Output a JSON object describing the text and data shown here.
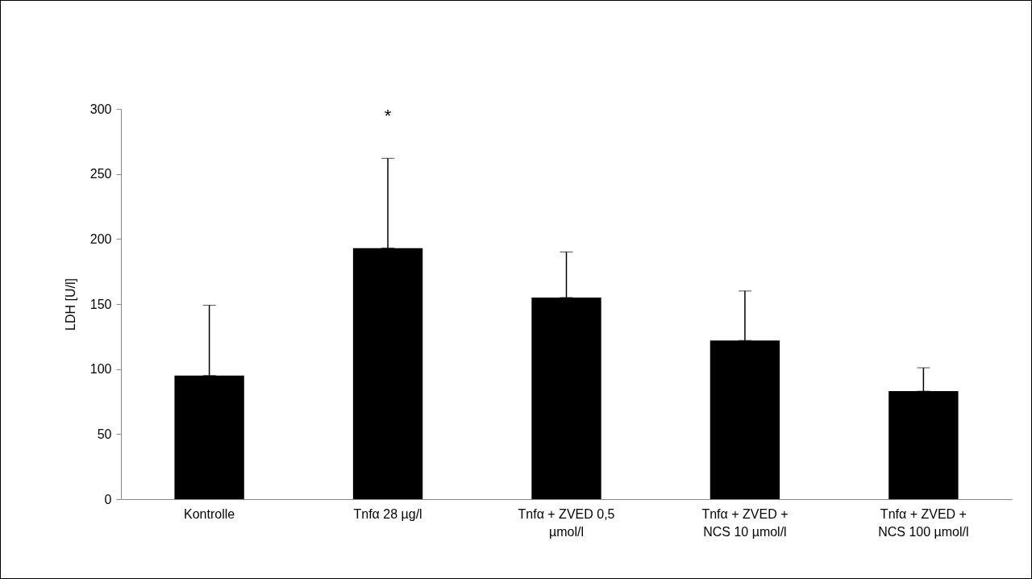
{
  "chart_data": {
    "type": "bar",
    "ylabel": "LDH [U/l]",
    "categories": [
      "Kontrolle",
      "Tnfα 28 µg/l",
      "Tnfα + ZVED 0,5 µmol/l",
      "Tnfα + ZVED + NCS 10 µmol/l",
      "Tnfα + ZVED + NCS 100 µmol/l"
    ],
    "values": [
      95,
      193,
      155,
      122,
      83
    ],
    "color": "#000000",
    "errors": [
      [
        95,
        149
      ],
      [
        193,
        262
      ],
      [
        155,
        190
      ],
      [
        122,
        160
      ],
      [
        83,
        101
      ]
    ],
    "ylim": [
      0,
      300
    ],
    "yticks": [
      0,
      50,
      100,
      150,
      200,
      250,
      300
    ],
    "grid": false,
    "annotations": [
      "*"
    ]
  }
}
